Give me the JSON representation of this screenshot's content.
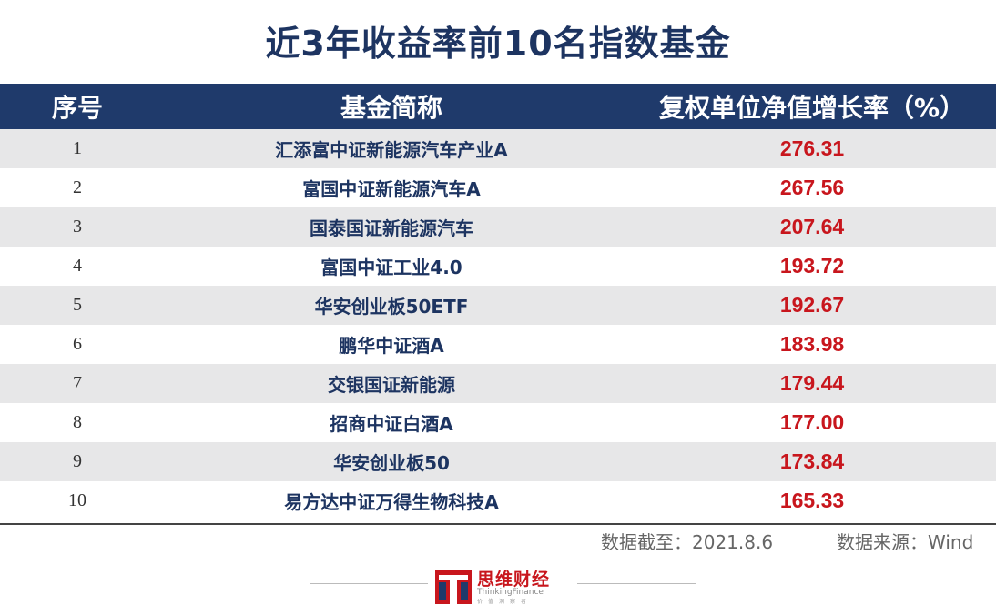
{
  "title": "近3年收益率前10名指数基金",
  "table": {
    "headers": [
      "序号",
      "基金简称",
      "复权单位净值增长率（%）"
    ],
    "rows": [
      {
        "idx": "1",
        "name": "汇添富中证新能源汽车产业A",
        "value": "276.31"
      },
      {
        "idx": "2",
        "name": "富国中证新能源汽车A",
        "value": "267.56"
      },
      {
        "idx": "3",
        "name": "国泰国证新能源汽车",
        "value": "207.64"
      },
      {
        "idx": "4",
        "name": "富国中证工业4.0",
        "value": "193.72"
      },
      {
        "idx": "5",
        "name": "华安创业板50ETF",
        "value": "192.67"
      },
      {
        "idx": "6",
        "name": "鹏华中证酒A",
        "value": "183.98"
      },
      {
        "idx": "7",
        "name": "交银国证新能源",
        "value": "179.44"
      },
      {
        "idx": "8",
        "name": "招商中证白酒A",
        "value": "177.00"
      },
      {
        "idx": "9",
        "name": "华安创业板50",
        "value": "173.84"
      },
      {
        "idx": "10",
        "name": "易方达中证万得生物科技A",
        "value": "165.33"
      }
    ]
  },
  "footer": {
    "data_date": "数据截至：2021.8.6",
    "data_source": "数据来源：Wind"
  },
  "logo": {
    "name": "思维财经",
    "english": "ThinkingFinance",
    "tagline": "价值洞察者"
  },
  "colors": {
    "header_bg": "#1f3a6b",
    "title": "#1d3461",
    "value_red": "#c8161d",
    "stripe": "#e7e7e8"
  }
}
